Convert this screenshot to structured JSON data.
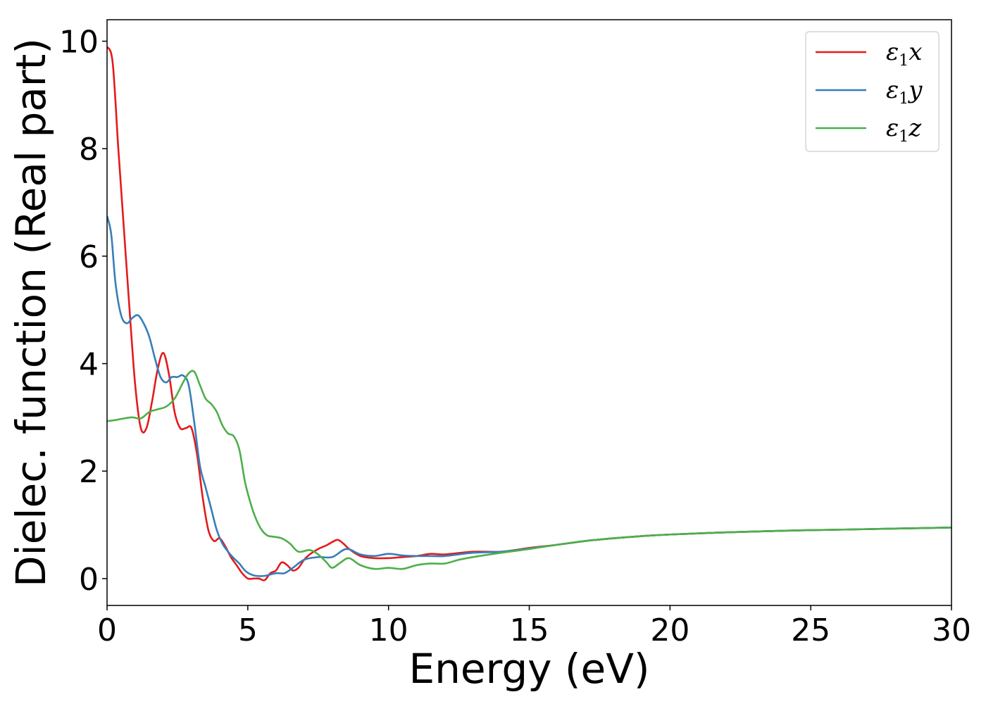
{
  "chart_data": {
    "type": "line",
    "xlabel": "Energy (eV)",
    "ylabel": "Dielec. function (Real part)",
    "xlim": [
      0,
      30
    ],
    "ylim": [
      -0.5,
      10.4
    ],
    "xticks": [
      0,
      5,
      10,
      15,
      20,
      25,
      30
    ],
    "yticks": [
      0,
      2,
      4,
      6,
      8,
      10
    ],
    "grid": false,
    "legend_position": "top-right",
    "series": [
      {
        "name": "ε₁x",
        "legend_main": "ε",
        "legend_sub": "1",
        "legend_suffix": "x",
        "color": "#e41a1c",
        "x": [
          0,
          0.2,
          0.4,
          0.6,
          0.8,
          1.0,
          1.2,
          1.4,
          1.6,
          1.8,
          2.0,
          2.2,
          2.4,
          2.6,
          2.8,
          3.0,
          3.2,
          3.4,
          3.6,
          3.8,
          4.0,
          4.2,
          4.4,
          4.6,
          4.8,
          5.0,
          5.2,
          5.4,
          5.6,
          5.8,
          6.0,
          6.2,
          6.4,
          6.6,
          6.8,
          7.0,
          7.2,
          7.5,
          7.8,
          8.0,
          8.2,
          8.4,
          8.6,
          9.0,
          9.5,
          10.0,
          10.5,
          11.0,
          11.5,
          12.0,
          13.0,
          14.0,
          15.0,
          16.0,
          17.0,
          18.0,
          19.0,
          20.0,
          22.0,
          24.0,
          26.0,
          28.0,
          30.0
        ],
        "y": [
          9.9,
          9.6,
          8.0,
          6.5,
          5.0,
          3.6,
          2.8,
          2.8,
          3.3,
          3.9,
          4.2,
          3.8,
          3.1,
          2.8,
          2.8,
          2.8,
          2.3,
          1.5,
          0.9,
          0.7,
          0.75,
          0.6,
          0.4,
          0.25,
          0.1,
          0.0,
          0.0,
          0.0,
          -0.03,
          0.1,
          0.15,
          0.3,
          0.25,
          0.15,
          0.2,
          0.35,
          0.45,
          0.55,
          0.62,
          0.68,
          0.72,
          0.65,
          0.55,
          0.42,
          0.38,
          0.38,
          0.4,
          0.42,
          0.46,
          0.45,
          0.5,
          0.5,
          0.57,
          0.63,
          0.7,
          0.75,
          0.79,
          0.82,
          0.86,
          0.89,
          0.91,
          0.93,
          0.95
        ]
      },
      {
        "name": "ε₁y",
        "legend_main": "ε",
        "legend_sub": "1",
        "legend_suffix": "y",
        "color": "#377eb8",
        "x": [
          0,
          0.15,
          0.3,
          0.5,
          0.7,
          0.9,
          1.1,
          1.3,
          1.5,
          1.7,
          1.9,
          2.1,
          2.3,
          2.5,
          2.7,
          2.9,
          3.1,
          3.3,
          3.5,
          3.7,
          3.9,
          4.1,
          4.3,
          4.5,
          4.7,
          4.9,
          5.1,
          5.3,
          5.6,
          6.0,
          6.3,
          6.6,
          7.0,
          7.5,
          8.0,
          8.5,
          9.0,
          9.5,
          10.0,
          10.5,
          11.0,
          11.5,
          12.0,
          13.0,
          14.0,
          15.0,
          16.0,
          17.0,
          18.0,
          19.0,
          20.0,
          22.0,
          24.0,
          26.0,
          28.0,
          30.0
        ],
        "y": [
          6.75,
          6.4,
          5.5,
          4.9,
          4.75,
          4.85,
          4.9,
          4.75,
          4.5,
          4.1,
          3.75,
          3.65,
          3.75,
          3.75,
          3.78,
          3.6,
          2.9,
          2.1,
          1.7,
          1.3,
          0.9,
          0.65,
          0.5,
          0.38,
          0.28,
          0.15,
          0.08,
          0.05,
          0.05,
          0.1,
          0.1,
          0.2,
          0.35,
          0.4,
          0.4,
          0.55,
          0.45,
          0.42,
          0.46,
          0.43,
          0.42,
          0.42,
          0.42,
          0.48,
          0.5,
          0.56,
          0.63,
          0.7,
          0.75,
          0.79,
          0.82,
          0.86,
          0.89,
          0.91,
          0.93,
          0.95
        ]
      },
      {
        "name": "ε₁z",
        "legend_main": "ε",
        "legend_sub": "1",
        "legend_suffix": "z",
        "color": "#4daf4a",
        "x": [
          0,
          0.3,
          0.6,
          0.9,
          1.2,
          1.5,
          1.8,
          2.1,
          2.4,
          2.7,
          2.9,
          3.1,
          3.3,
          3.5,
          3.7,
          3.9,
          4.1,
          4.3,
          4.5,
          4.7,
          4.9,
          5.1,
          5.3,
          5.5,
          5.7,
          5.9,
          6.2,
          6.5,
          6.8,
          7.2,
          7.5,
          7.8,
          8.0,
          8.3,
          8.6,
          9.0,
          9.5,
          10.0,
          10.5,
          11.0,
          11.5,
          12.0,
          12.5,
          13.0,
          14.0,
          15.0,
          16.0,
          17.0,
          18.0,
          19.0,
          20.0,
          22.0,
          24.0,
          26.0,
          28.0,
          30.0
        ],
        "y": [
          2.93,
          2.95,
          2.98,
          3.0,
          2.98,
          3.1,
          3.15,
          3.2,
          3.35,
          3.65,
          3.82,
          3.85,
          3.6,
          3.35,
          3.25,
          3.1,
          2.85,
          2.7,
          2.65,
          2.4,
          1.8,
          1.4,
          1.1,
          0.9,
          0.8,
          0.78,
          0.75,
          0.65,
          0.5,
          0.53,
          0.45,
          0.3,
          0.2,
          0.3,
          0.38,
          0.25,
          0.18,
          0.2,
          0.18,
          0.25,
          0.28,
          0.28,
          0.35,
          0.4,
          0.48,
          0.55,
          0.63,
          0.7,
          0.75,
          0.79,
          0.82,
          0.86,
          0.89,
          0.91,
          0.93,
          0.95
        ]
      }
    ]
  }
}
